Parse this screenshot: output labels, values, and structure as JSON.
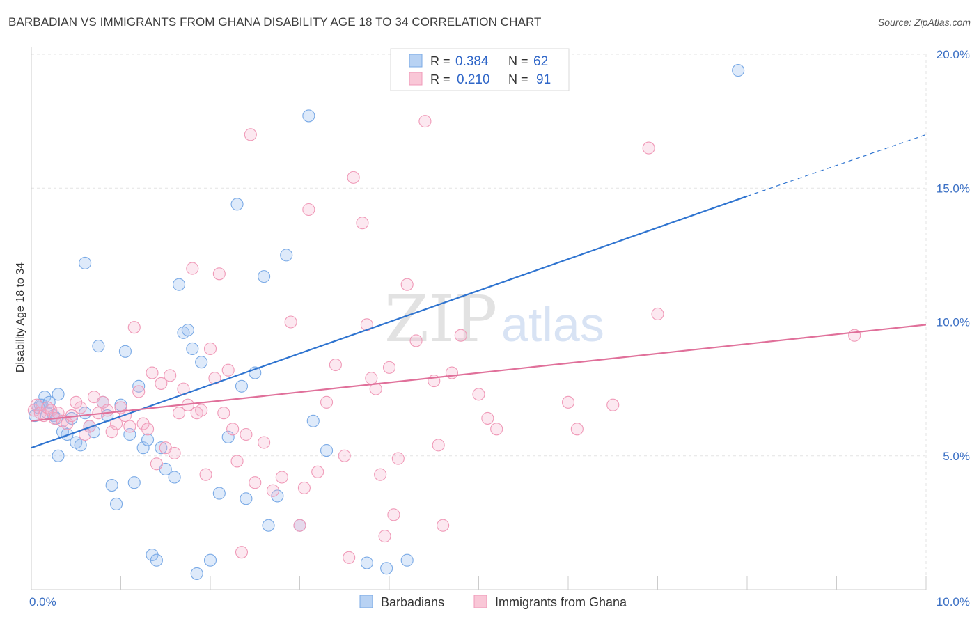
{
  "title": "BARBADIAN VS IMMIGRANTS FROM GHANA DISABILITY AGE 18 TO 34 CORRELATION CHART",
  "source": "Source: ZipAtlas.com",
  "watermark": {
    "zip": "ZIP",
    "atlas": "atlas"
  },
  "legend_top": [
    {
      "r_label": "R =",
      "r_value": "0.384",
      "n_label": "N =",
      "n_value": "62"
    },
    {
      "r_label": "R =",
      "r_value": "0.210",
      "n_label": "N =",
      "n_value": "91"
    }
  ],
  "legend_bottom": [
    "Barbadians",
    "Immigrants from Ghana"
  ],
  "chart_data": {
    "type": "scatter",
    "title": "BARBADIAN VS IMMIGRANTS FROM GHANA DISABILITY AGE 18 TO 34 CORRELATION CHART",
    "xlabel": "",
    "ylabel": "Disability Age 18 to 34",
    "xlim": [
      0,
      10
    ],
    "ylim": [
      0,
      20
    ],
    "x_tick_labels": [
      "0.0%",
      "10.0%"
    ],
    "y_ticks": [
      5,
      10,
      15,
      20
    ],
    "y_tick_labels": [
      "5.0%",
      "10.0%",
      "15.0%",
      "20.0%"
    ],
    "grid": true,
    "legend_position": "top-center",
    "series": [
      {
        "name": "Barbadians",
        "color": "#7aaae6",
        "line_color": "#2f74d0",
        "r": 0.384,
        "n": 62,
        "trend": {
          "x0": 0.0,
          "y0": 5.3,
          "x1": 8.0,
          "y1": 14.7,
          "dash_to_x": 10.0,
          "dash_to_y": 17.0
        },
        "x": [
          0.04,
          0.08,
          0.12,
          0.15,
          0.18,
          0.1,
          0.2,
          0.25,
          0.28,
          0.3,
          0.35,
          0.4,
          0.45,
          0.5,
          0.55,
          0.6,
          0.65,
          0.7,
          0.75,
          0.8,
          0.85,
          0.9,
          0.95,
          1.0,
          1.05,
          1.1,
          1.15,
          1.2,
          1.25,
          1.3,
          1.35,
          1.4,
          1.45,
          1.5,
          1.6,
          1.65,
          1.7,
          1.75,
          1.8,
          1.9,
          2.0,
          2.1,
          2.2,
          2.3,
          2.35,
          2.4,
          2.5,
          2.6,
          2.65,
          2.75,
          2.85,
          3.0,
          3.1,
          3.15,
          3.3,
          3.75,
          3.97,
          4.2,
          0.3,
          0.6,
          1.85,
          7.9
        ],
        "y": [
          6.5,
          6.8,
          6.9,
          7.2,
          6.6,
          6.9,
          7.0,
          6.5,
          6.4,
          7.3,
          5.9,
          5.8,
          6.4,
          5.5,
          5.4,
          12.2,
          6.1,
          5.9,
          9.1,
          7.0,
          6.5,
          3.9,
          3.2,
          6.9,
          8.9,
          5.8,
          4.0,
          7.6,
          5.3,
          5.6,
          1.3,
          1.1,
          5.3,
          4.5,
          4.2,
          11.4,
          9.6,
          9.7,
          9.0,
          8.5,
          1.1,
          3.6,
          5.7,
          14.4,
          7.6,
          3.4,
          8.1,
          11.7,
          2.4,
          3.5,
          12.5,
          2.4,
          17.7,
          6.3,
          5.2,
          1.0,
          0.8,
          1.1,
          5.0,
          6.6,
          0.6,
          19.4
        ]
      },
      {
        "name": "Immigrants from Ghana",
        "color": "#f09ab8",
        "line_color": "#e0709a",
        "r": 0.21,
        "n": 91,
        "trend": {
          "x0": 0.0,
          "y0": 6.3,
          "x1": 10.0,
          "y1": 9.9
        },
        "x": [
          0.03,
          0.06,
          0.1,
          0.14,
          0.18,
          0.22,
          0.26,
          0.3,
          0.35,
          0.4,
          0.45,
          0.5,
          0.55,
          0.6,
          0.65,
          0.7,
          0.75,
          0.8,
          0.85,
          0.9,
          0.95,
          1.0,
          1.05,
          1.1,
          1.15,
          1.2,
          1.25,
          1.3,
          1.35,
          1.4,
          1.45,
          1.5,
          1.55,
          1.6,
          1.65,
          1.7,
          1.75,
          1.8,
          1.85,
          1.9,
          1.95,
          2.0,
          2.05,
          2.1,
          2.15,
          2.2,
          2.25,
          2.3,
          2.35,
          2.4,
          2.45,
          2.5,
          2.6,
          2.7,
          2.8,
          2.9,
          3.0,
          3.05,
          3.1,
          3.2,
          3.3,
          3.4,
          3.5,
          3.55,
          3.6,
          3.7,
          3.75,
          3.8,
          3.85,
          3.9,
          3.95,
          4.0,
          4.05,
          4.1,
          4.2,
          4.3,
          4.4,
          4.5,
          4.55,
          4.6,
          4.7,
          4.8,
          5.0,
          5.1,
          5.2,
          6.0,
          6.1,
          6.5,
          6.9,
          7.0,
          9.2
        ],
        "y": [
          6.7,
          6.9,
          6.6,
          6.5,
          6.8,
          6.7,
          6.4,
          6.6,
          6.3,
          6.2,
          6.5,
          7.0,
          6.8,
          5.8,
          6.1,
          7.2,
          6.6,
          7.0,
          6.7,
          5.9,
          6.2,
          6.8,
          6.5,
          6.1,
          9.8,
          7.4,
          6.2,
          6.0,
          8.1,
          4.7,
          7.7,
          5.3,
          8.0,
          5.1,
          6.6,
          7.5,
          6.9,
          12.0,
          6.6,
          6.7,
          4.3,
          9.0,
          7.9,
          11.8,
          6.6,
          8.2,
          6.0,
          4.8,
          1.4,
          5.8,
          17.0,
          4.0,
          5.5,
          3.7,
          4.2,
          10.0,
          2.4,
          3.8,
          14.2,
          4.4,
          7.0,
          8.4,
          5.0,
          1.2,
          15.4,
          13.7,
          9.9,
          7.9,
          7.5,
          4.3,
          2.0,
          8.3,
          2.8,
          4.9,
          11.4,
          9.3,
          17.5,
          7.8,
          5.4,
          2.4,
          8.1,
          9.5,
          7.3,
          6.4,
          6.0,
          7.0,
          6.0,
          6.9,
          16.5,
          10.3,
          9.5
        ]
      }
    ]
  }
}
